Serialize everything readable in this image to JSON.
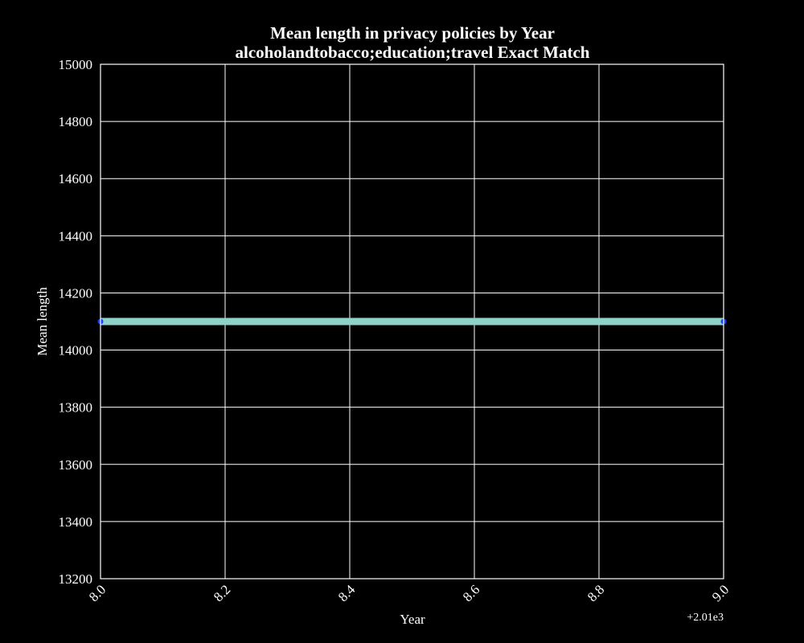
{
  "chart_data": {
    "type": "line",
    "title_line1": "Mean length in privacy policies by Year",
    "title_line2": "alcoholandtobacco;education;travel Exact Match",
    "xlabel": "Year",
    "ylabel": "Mean length",
    "x_offset_label": "+2.01e3",
    "xlim": [
      8.0,
      9.0
    ],
    "ylim": [
      13200,
      15000
    ],
    "x_ticks": [
      "8.0",
      "8.2",
      "8.4",
      "8.6",
      "8.8",
      "9.0"
    ],
    "y_ticks": [
      "13200",
      "13400",
      "13600",
      "13800",
      "14000",
      "14200",
      "14400",
      "14600",
      "14800",
      "15000"
    ],
    "grid": true,
    "series": [
      {
        "x": [
          8.0,
          9.0
        ],
        "y": [
          14100,
          14100
        ],
        "color": "#8dd3c7",
        "marker_color": "#1f3fff"
      }
    ]
  }
}
